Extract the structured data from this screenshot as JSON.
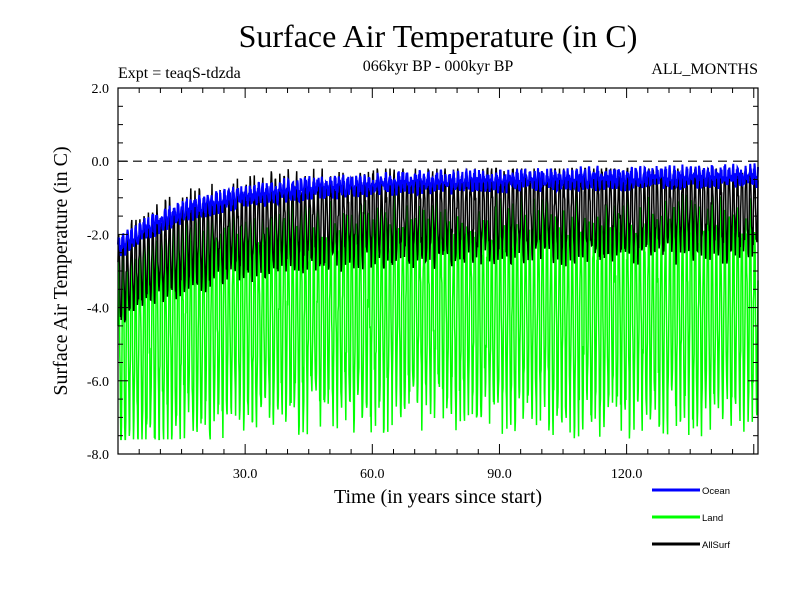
{
  "chart_data": {
    "type": "line",
    "title": "Surface Air Temperature (in C)",
    "experiment": "Expt = teaqS-tdzda",
    "period": "066kyr BP - 000kyr BP",
    "season": "ALL_MONTHS",
    "xlabel": "Time (in years since start)",
    "ylabel": "Surface Air Temperature (in C)",
    "xlim": [
      0,
      151
    ],
    "ylim": [
      -8.0,
      2.0
    ],
    "x_ticks": [
      30,
      60,
      90,
      120
    ],
    "x_tick_labels": [
      "30.0",
      "60.0",
      "90.0",
      "120.0"
    ],
    "y_ticks": [
      2.0,
      0.0,
      -2.0,
      -4.0,
      -6.0,
      -8.0
    ],
    "y_tick_labels": [
      "2.0",
      "0.0",
      "-2.0",
      "-4.0",
      "-6.0",
      "-8.0"
    ],
    "reference_line": 0.0,
    "legend_position": "bottom-right",
    "colors": {
      "Ocean": "#0000ff",
      "Land": "#00ff00",
      "AllSurf": "#000000"
    },
    "series": [
      {
        "name": "Ocean",
        "approx_range": [
          -2.6,
          0.15
        ],
        "trend": "rises from about -2.4 at start to about -0.7 by year 50, then roughly flat near -0.5 with seasonal wiggles"
      },
      {
        "name": "Land",
        "approx_range": [
          -7.6,
          -0.6
        ],
        "trend": "strong seasonal cycle between about -7 and -1.2, slight warming over first 50 years"
      },
      {
        "name": "AllSurf",
        "approx_range": [
          -4.5,
          -0.2
        ],
        "trend": "seasonal cycle between about -3.5 and -0.8, following the ocean trend"
      }
    ]
  }
}
